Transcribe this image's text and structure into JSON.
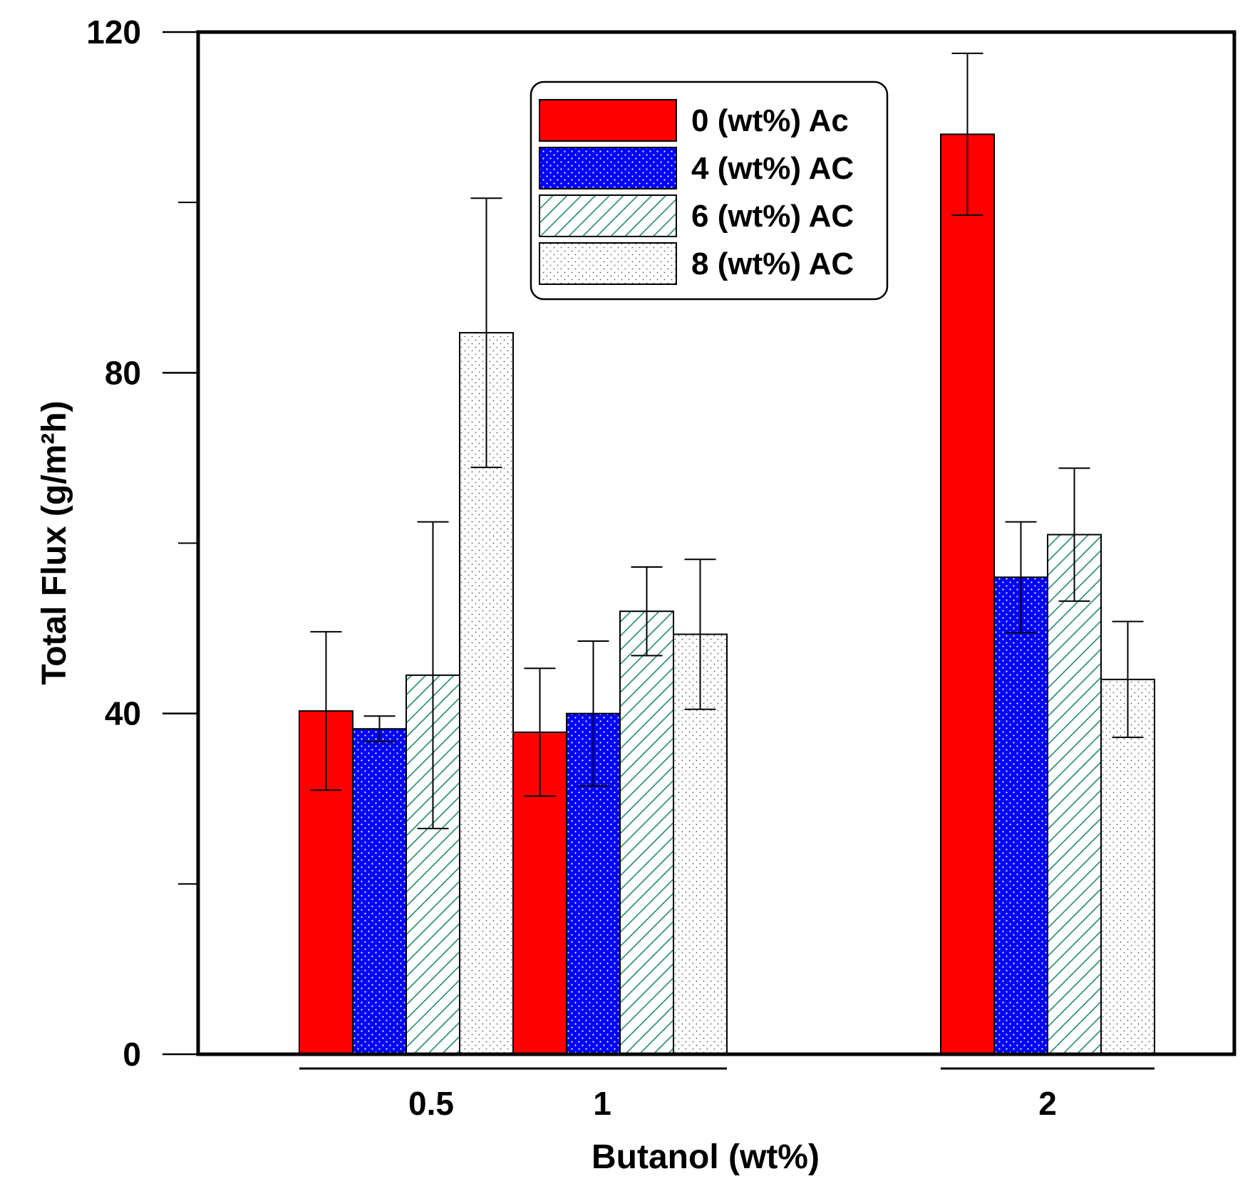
{
  "chart_data": {
    "type": "bar",
    "title": "",
    "xlabel": "Butanol (wt%)",
    "ylabel": "Total Flux (g/m²h)",
    "ylim": [
      0,
      120
    ],
    "y_ticks": [
      0,
      40,
      80,
      120
    ],
    "y_minor_ticks": [
      20,
      60,
      100
    ],
    "grid": false,
    "legend_position": "top-center",
    "categories": [
      "0.5",
      "1",
      "2"
    ],
    "series": [
      {
        "name": "0 (wt%) Ac",
        "fill": "solid",
        "color": "#ff0000",
        "values": [
          40.3,
          37.8,
          108.0
        ],
        "error": [
          9.3,
          7.5,
          9.5
        ]
      },
      {
        "name": "4 (wt%) AC",
        "fill": "dots",
        "color": "#0000ff",
        "values": [
          38.2,
          40.0,
          56.0
        ],
        "error": [
          1.5,
          8.5,
          6.5
        ]
      },
      {
        "name": "6 (wt%) AC",
        "fill": "hatch",
        "color": "#1f8a70",
        "values": [
          44.5,
          52.0,
          61.0
        ],
        "error": [
          18.0,
          5.2,
          7.8
        ]
      },
      {
        "name": "8 (wt%) AC",
        "fill": "stipple",
        "color": "#777777",
        "values": [
          84.7,
          49.3,
          44.0
        ],
        "error": [
          15.8,
          8.8,
          6.8
        ]
      }
    ]
  }
}
